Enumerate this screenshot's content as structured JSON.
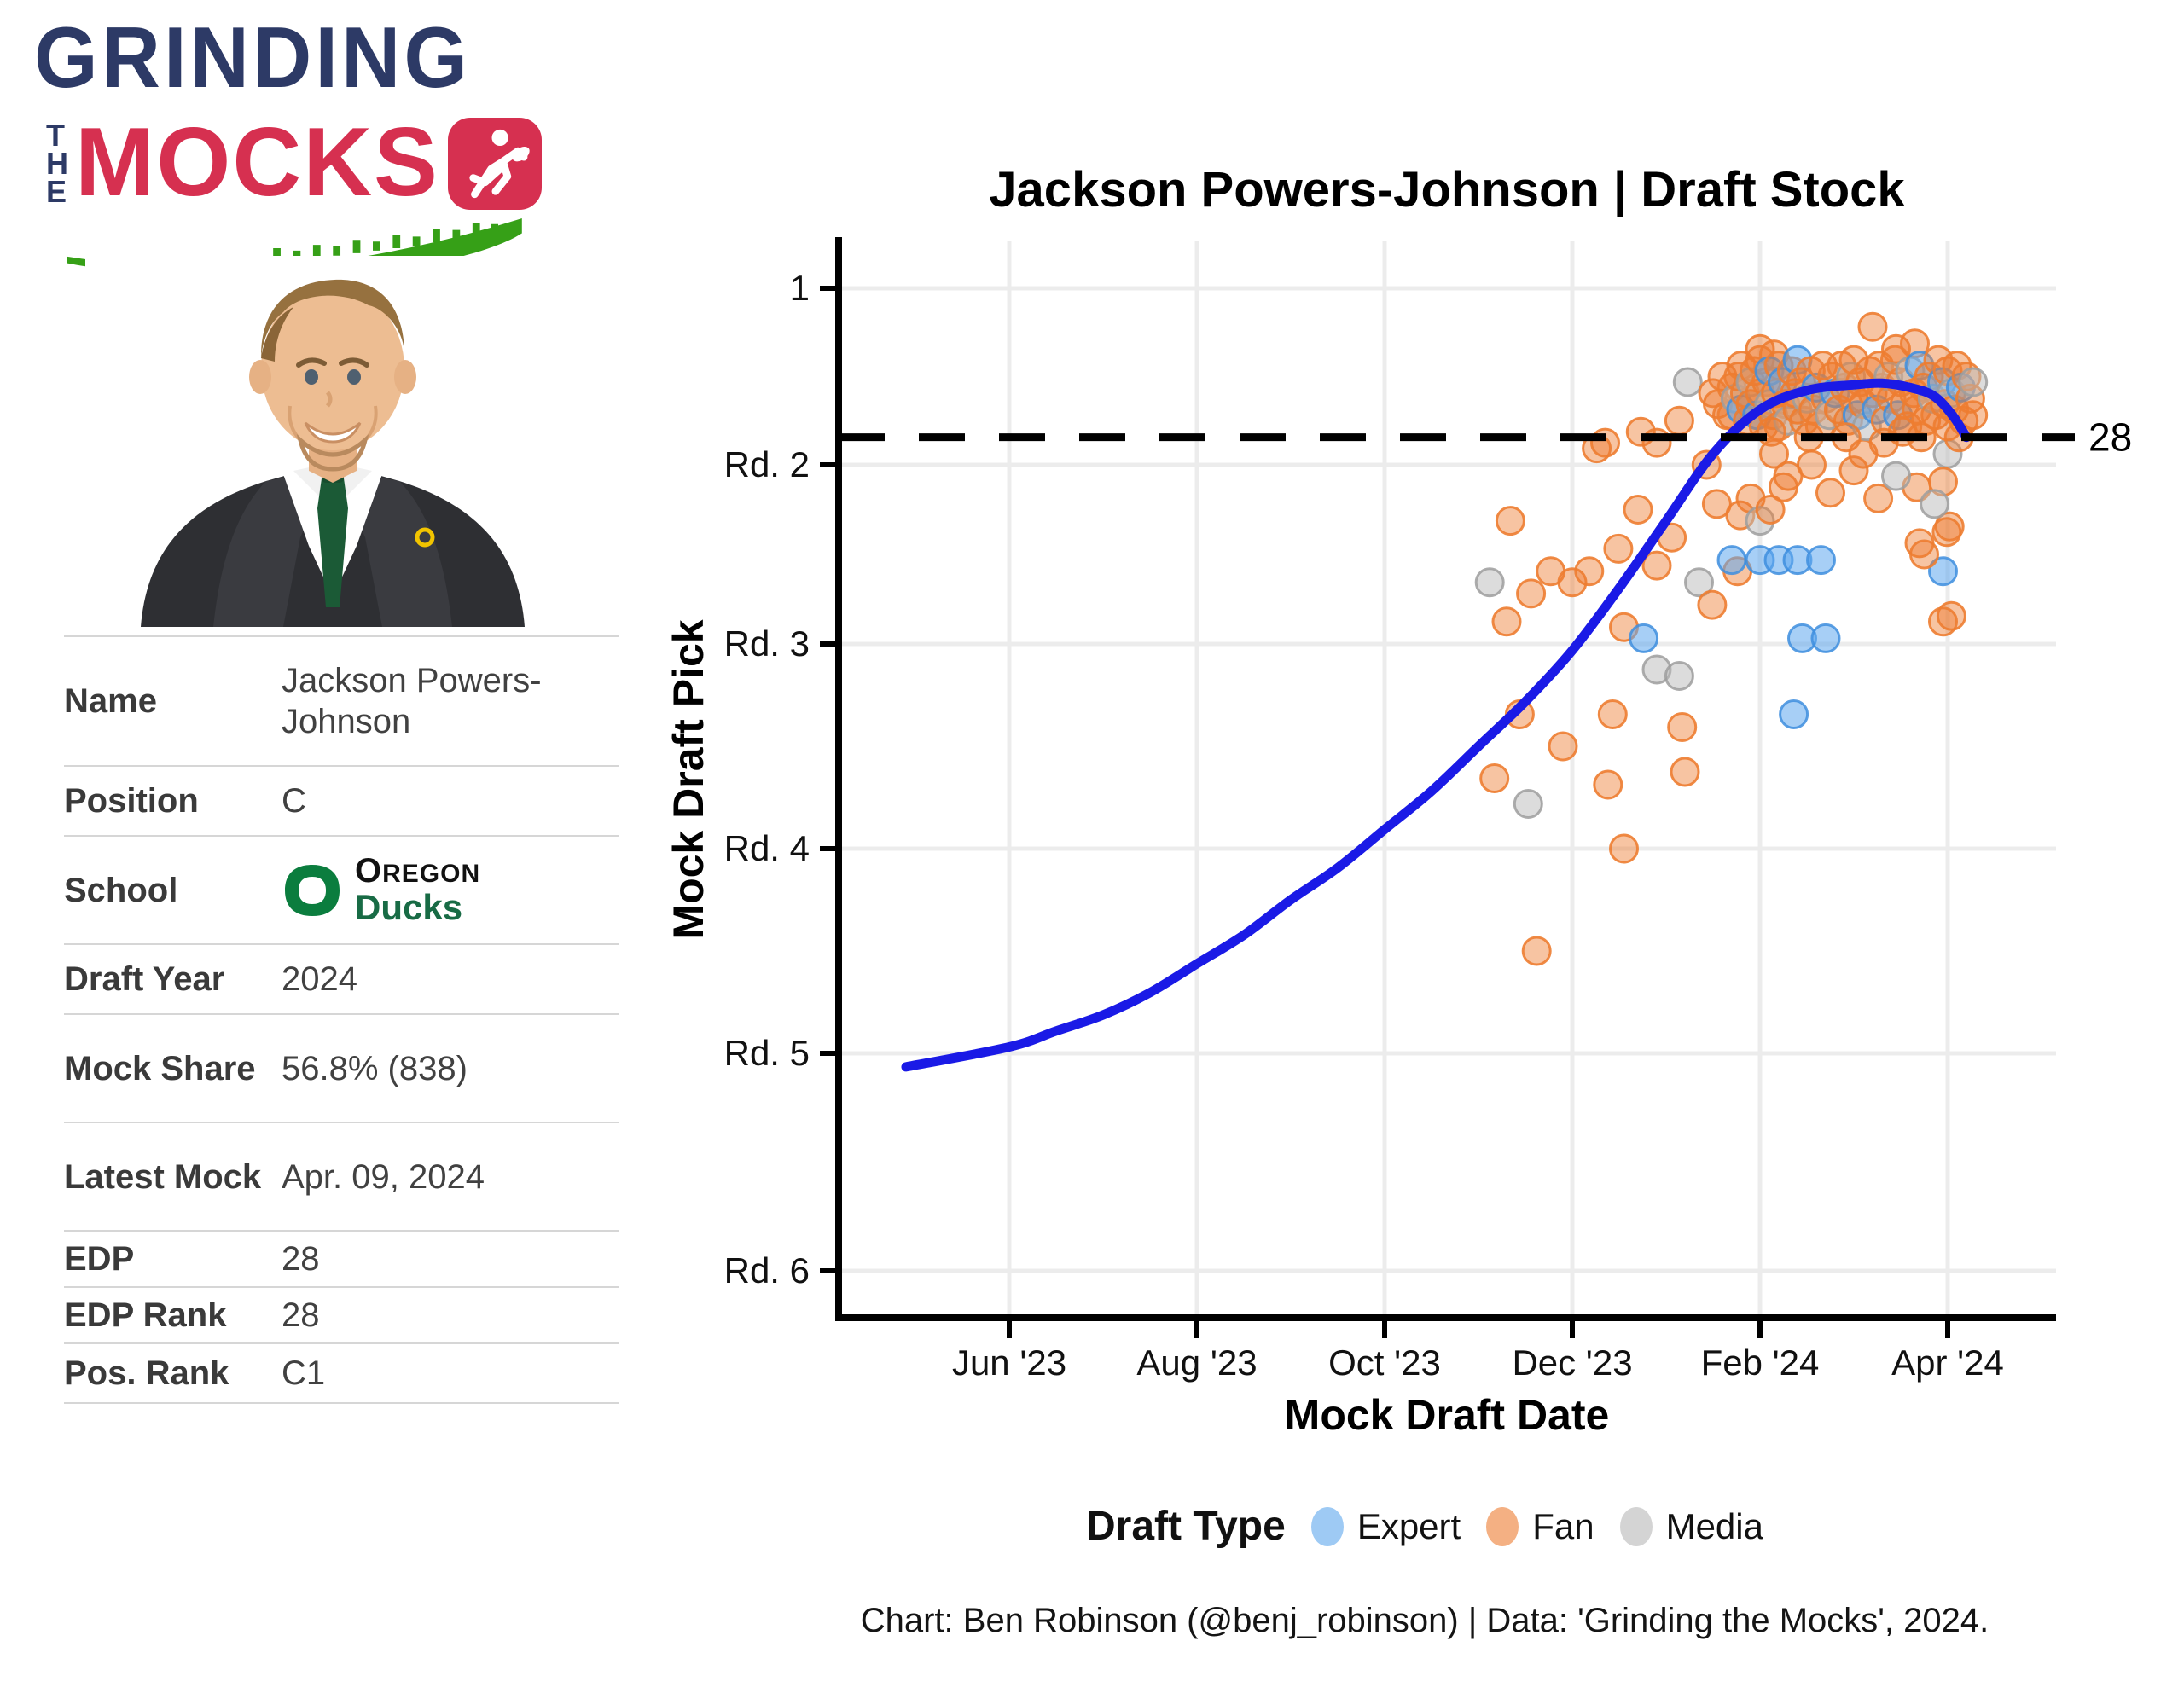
{
  "logo": {
    "word1": "GRINDING",
    "word2": "THE",
    "word3": "MOCKS"
  },
  "player": {
    "rows": [
      {
        "label": "Name",
        "value": "Jackson Powers-Johnson"
      },
      {
        "label": "Position",
        "value": "C"
      },
      {
        "label": "School",
        "value": "Oregon Ducks"
      },
      {
        "label": "Draft Year",
        "value": "2024"
      },
      {
        "label": "Mock Share",
        "value": "56.8% (838)"
      },
      {
        "label": "Latest Mock",
        "value": "Apr. 09, 2024"
      },
      {
        "label": "EDP",
        "value": "28"
      },
      {
        "label": "EDP Rank",
        "value": "28"
      },
      {
        "label": "Pos. Rank",
        "value": "C1"
      }
    ],
    "school_top": "OREGON",
    "school_top_initial": "O",
    "school_top_rest": "REGON",
    "school_bottom": "Ducks"
  },
  "chart": {
    "title": "Jackson Powers-Johnson | Draft Stock",
    "ylabel": "Mock Draft Pick",
    "xlabel": "Mock Draft Date",
    "edp_label": "28",
    "legend_title": "Draft Type",
    "legend_items": [
      {
        "key": "e",
        "label": "Expert"
      },
      {
        "key": "f",
        "label": "Fan"
      },
      {
        "key": "m",
        "label": "Media"
      }
    ],
    "caption": "Chart: Ben Robinson (@benj_robinson) | Data: 'Grinding the Mocks', 2024."
  },
  "colors": {
    "expert": "#5fa8ee",
    "fan": "#ed7d31",
    "media": "#b9b9b9",
    "trend": "#1a1ae6",
    "dashed": "#000000",
    "grid": "#ececec",
    "navy": "#2d3a66",
    "crimson": "#d63050",
    "field_green": "#36a017",
    "oregon_green": "#0b7d3e",
    "ducks_green": "#186b45"
  },
  "chart_data": {
    "type": "scatter",
    "title": "Jackson Powers-Johnson | Draft Stock",
    "xlabel": "Mock Draft Date",
    "ylabel": "Mock Draft Pick",
    "x_unit": "months since 2023-06-01",
    "x_ticks": {
      "values": [
        0,
        2,
        4,
        6,
        8,
        10
      ],
      "labels": [
        "Jun '23",
        "Aug '23",
        "Oct '23",
        "Dec '23",
        "Feb '24",
        "Apr '24"
      ]
    },
    "y_ticks": {
      "picks": [
        1,
        33,
        65,
        97,
        129,
        161
      ],
      "labels": [
        "1",
        "Rd. 2",
        "Rd. 3",
        "Rd. 4",
        "Rd. 5",
        "Rd. 6"
      ]
    },
    "y_axis_reversed_picks": true,
    "grid": true,
    "legend_position": "bottom",
    "edp_line": {
      "pick": 28,
      "label": "28",
      "style": "dashed"
    },
    "series_legend": {
      "e": "Expert",
      "f": "Fan",
      "m": "Media"
    },
    "points": [
      [
        5.12,
        54,
        "m"
      ],
      [
        5.17,
        86,
        "f"
      ],
      [
        5.3,
        61,
        "f"
      ],
      [
        5.34,
        43,
        "f"
      ],
      [
        5.44,
        76,
        "f"
      ],
      [
        5.53,
        90,
        "m"
      ],
      [
        5.56,
        56,
        "f"
      ],
      [
        5.62,
        113,
        "f"
      ],
      [
        5.77,
        52,
        "f"
      ],
      [
        5.9,
        81,
        "f"
      ],
      [
        6.0,
        54,
        "f"
      ],
      [
        6.18,
        52,
        "f"
      ],
      [
        6.26,
        30,
        "f"
      ],
      [
        6.35,
        29,
        "f"
      ],
      [
        6.38,
        87,
        "f"
      ],
      [
        6.43,
        76,
        "f"
      ],
      [
        6.49,
        48,
        "f"
      ],
      [
        6.55,
        97,
        "f"
      ],
      [
        6.55,
        62,
        "f"
      ],
      [
        6.7,
        41,
        "f"
      ],
      [
        6.73,
        27,
        "f"
      ],
      [
        6.76,
        64,
        "e"
      ],
      [
        6.9,
        69,
        "m"
      ],
      [
        6.9,
        29,
        "f"
      ],
      [
        6.9,
        51,
        "f"
      ],
      [
        7.06,
        46,
        "f"
      ],
      [
        7.14,
        70,
        "m"
      ],
      [
        7.14,
        25,
        "f"
      ],
      [
        7.17,
        78,
        "f"
      ],
      [
        7.2,
        85,
        "f"
      ],
      [
        7.23,
        18,
        "m"
      ],
      [
        7.35,
        54,
        "m"
      ],
      [
        7.43,
        33,
        "f"
      ],
      [
        7.49,
        58,
        "f"
      ],
      [
        7.54,
        40,
        "f"
      ],
      [
        7.76,
        52,
        "f"
      ],
      [
        7.5,
        20,
        "f"
      ],
      [
        7.55,
        22,
        "f"
      ],
      [
        7.6,
        17,
        "f"
      ],
      [
        7.65,
        24,
        "f"
      ],
      [
        7.7,
        50,
        "e"
      ],
      [
        8.0,
        50,
        "e"
      ],
      [
        8.2,
        50,
        "e"
      ],
      [
        8.4,
        50,
        "e"
      ],
      [
        8.65,
        50,
        "e"
      ],
      [
        9.95,
        52,
        "e"
      ],
      [
        8.45,
        64,
        "e"
      ],
      [
        8.7,
        64,
        "e"
      ],
      [
        8.36,
        76,
        "e"
      ],
      [
        7.79,
        42,
        "f"
      ],
      [
        7.9,
        39,
        "f"
      ],
      [
        8.0,
        43,
        "m"
      ],
      [
        8.11,
        41,
        "f"
      ],
      [
        8.25,
        37,
        "f"
      ],
      [
        8.75,
        38,
        "f"
      ],
      [
        9.26,
        39,
        "f"
      ],
      [
        9.67,
        37,
        "f"
      ],
      [
        8.3,
        35,
        "f"
      ],
      [
        8.55,
        33,
        "f"
      ],
      [
        9.0,
        34,
        "f"
      ],
      [
        9.45,
        35,
        "m"
      ],
      [
        9.1,
        31,
        "f"
      ],
      [
        8.15,
        31,
        "f"
      ],
      [
        8.0,
        12,
        "f"
      ],
      [
        8.15,
        13,
        "f"
      ],
      [
        9.2,
        8,
        "f"
      ],
      [
        9.45,
        12,
        "f"
      ],
      [
        9.65,
        11,
        "f"
      ],
      [
        10.0,
        31,
        "m"
      ],
      [
        9.95,
        36,
        "f"
      ],
      [
        10.02,
        44,
        "f"
      ],
      [
        10.04,
        60,
        "f"
      ],
      [
        9.95,
        61,
        "f"
      ],
      [
        9.75,
        49,
        "f"
      ],
      [
        9.7,
        47,
        "f"
      ],
      [
        9.86,
        40,
        "m"
      ],
      [
        9.99,
        45,
        "f"
      ],
      [
        7.7,
        24,
        "f"
      ],
      [
        7.7,
        19,
        "f"
      ],
      [
        7.74,
        21,
        "m"
      ],
      [
        7.77,
        17,
        "f"
      ],
      [
        7.8,
        23,
        "e"
      ],
      [
        7.8,
        15,
        "f"
      ],
      [
        7.84,
        20,
        "f"
      ],
      [
        7.87,
        25,
        "f"
      ],
      [
        7.9,
        18,
        "m"
      ],
      [
        7.9,
        22,
        "f"
      ],
      [
        7.94,
        16,
        "f"
      ],
      [
        7.97,
        24,
        "e"
      ],
      [
        8.0,
        20,
        "f"
      ],
      [
        8.0,
        14,
        "f"
      ],
      [
        8.04,
        26,
        "f"
      ],
      [
        8.07,
        18,
        "f"
      ],
      [
        8.1,
        22,
        "m"
      ],
      [
        8.1,
        16,
        "e"
      ],
      [
        8.14,
        24,
        "f"
      ],
      [
        8.17,
        20,
        "f"
      ],
      [
        8.2,
        15,
        "f"
      ],
      [
        8.2,
        26,
        "f"
      ],
      [
        8.24,
        18,
        "e"
      ],
      [
        8.27,
        22,
        "f"
      ],
      [
        8.3,
        25,
        "m"
      ],
      [
        8.34,
        16,
        "f"
      ],
      [
        8.37,
        20,
        "f"
      ],
      [
        8.4,
        23,
        "f"
      ],
      [
        8.4,
        14,
        "e"
      ],
      [
        8.44,
        18,
        "f"
      ],
      [
        8.47,
        25,
        "f"
      ],
      [
        8.5,
        21,
        "m"
      ],
      [
        8.54,
        16,
        "f"
      ],
      [
        8.57,
        23,
        "f"
      ],
      [
        8.6,
        19,
        "e"
      ],
      [
        8.64,
        26,
        "f"
      ],
      [
        8.67,
        15,
        "f"
      ],
      [
        8.7,
        21,
        "f"
      ],
      [
        8.74,
        24,
        "m"
      ],
      [
        8.77,
        17,
        "f"
      ],
      [
        8.8,
        20,
        "e"
      ],
      [
        8.84,
        23,
        "f"
      ],
      [
        8.87,
        15,
        "f"
      ],
      [
        8.9,
        19,
        "f"
      ],
      [
        8.94,
        25,
        "f"
      ],
      [
        8.97,
        17,
        "m"
      ],
      [
        9.0,
        21,
        "f"
      ],
      [
        9.0,
        14,
        "f"
      ],
      [
        9.04,
        24,
        "e"
      ],
      [
        9.07,
        18,
        "f"
      ],
      [
        9.1,
        22,
        "f"
      ],
      [
        9.14,
        26,
        "m"
      ],
      [
        9.17,
        16,
        "f"
      ],
      [
        9.2,
        20,
        "f"
      ],
      [
        9.24,
        23,
        "e"
      ],
      [
        9.27,
        15,
        "f"
      ],
      [
        9.3,
        19,
        "f"
      ],
      [
        9.34,
        25,
        "f"
      ],
      [
        9.37,
        17,
        "m"
      ],
      [
        9.4,
        21,
        "f"
      ],
      [
        9.44,
        14,
        "f"
      ],
      [
        9.47,
        24,
        "e"
      ],
      [
        9.5,
        18,
        "f"
      ],
      [
        9.54,
        22,
        "f"
      ],
      [
        9.57,
        26,
        "f"
      ],
      [
        9.6,
        16,
        "m"
      ],
      [
        9.64,
        20,
        "f"
      ],
      [
        9.67,
        23,
        "f"
      ],
      [
        9.7,
        15,
        "e"
      ],
      [
        9.74,
        19,
        "f"
      ],
      [
        9.77,
        25,
        "f"
      ],
      [
        9.8,
        17,
        "f"
      ],
      [
        9.84,
        21,
        "m"
      ],
      [
        9.87,
        24,
        "f"
      ],
      [
        9.9,
        14,
        "f"
      ],
      [
        9.94,
        18,
        "e"
      ],
      [
        9.97,
        22,
        "f"
      ],
      [
        10.0,
        26,
        "f"
      ],
      [
        10.0,
        16,
        "f"
      ],
      [
        10.04,
        20,
        "m"
      ],
      [
        10.07,
        23,
        "f"
      ],
      [
        10.1,
        15,
        "f"
      ],
      [
        10.14,
        19,
        "e"
      ],
      [
        10.17,
        25,
        "f"
      ],
      [
        10.2,
        17,
        "f"
      ],
      [
        10.24,
        21,
        "f"
      ],
      [
        10.27,
        24,
        "f"
      ],
      [
        10.27,
        18,
        "m"
      ],
      [
        8.52,
        28,
        "f"
      ],
      [
        8.92,
        28,
        "f"
      ],
      [
        9.32,
        29,
        "f"
      ],
      [
        9.72,
        28,
        "f"
      ],
      [
        10.12,
        28,
        "f"
      ],
      [
        8.12,
        27,
        "f"
      ],
      [
        9.52,
        27,
        "f"
      ]
    ],
    "trend": [
      [
        -1.1,
        131
      ],
      [
        0,
        128
      ],
      [
        0.5,
        125.5
      ],
      [
        1,
        123
      ],
      [
        1.5,
        119.5
      ],
      [
        2,
        115
      ],
      [
        2.5,
        110.5
      ],
      [
        3,
        105
      ],
      [
        3.5,
        100
      ],
      [
        4,
        94
      ],
      [
        4.5,
        88
      ],
      [
        5,
        81
      ],
      [
        5.5,
        74
      ],
      [
        6,
        66
      ],
      [
        6.5,
        55
      ],
      [
        7,
        43
      ],
      [
        7.5,
        31
      ],
      [
        8,
        23
      ],
      [
        8.5,
        19.5
      ],
      [
        9,
        18.5
      ],
      [
        9.3,
        18.2
      ],
      [
        9.6,
        19
      ],
      [
        9.85,
        20.5
      ],
      [
        10.05,
        24
      ],
      [
        10.2,
        28
      ]
    ]
  }
}
